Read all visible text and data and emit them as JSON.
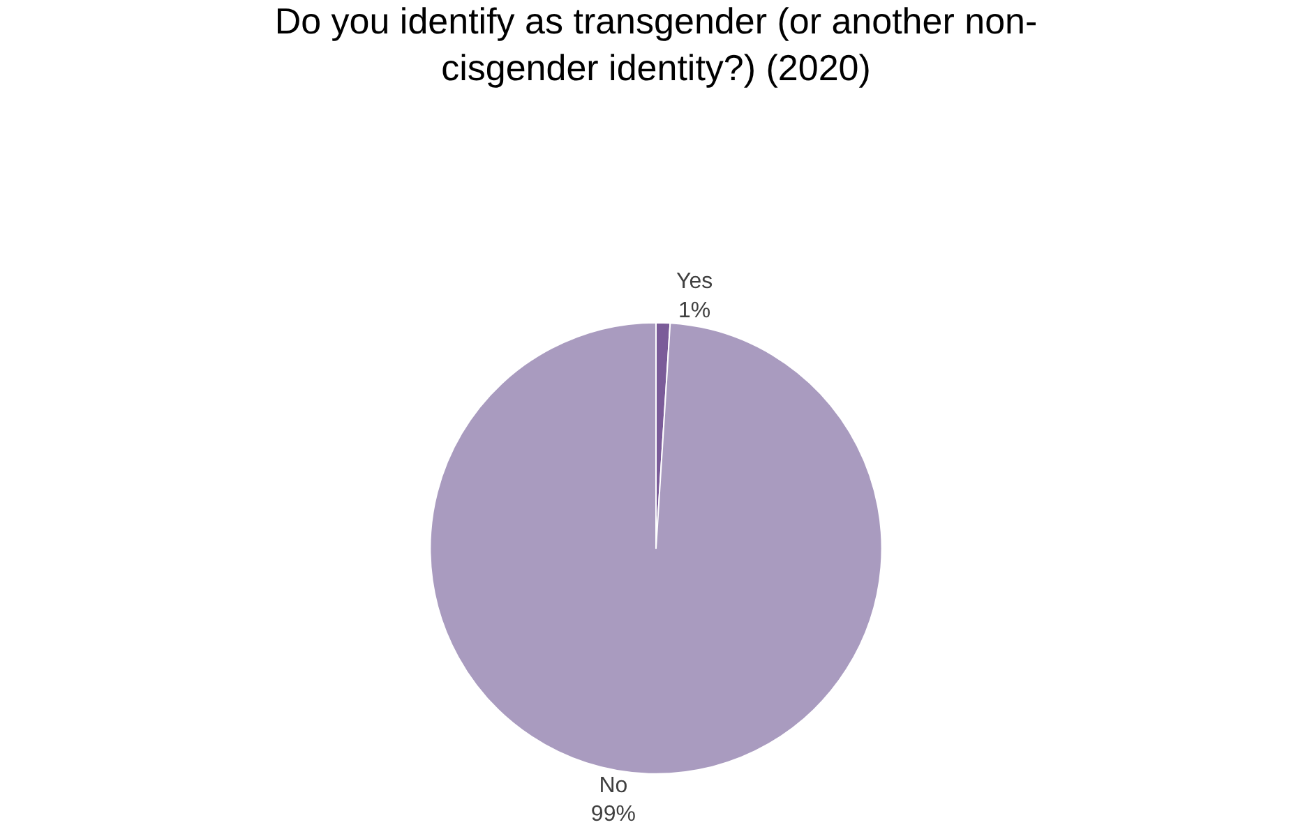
{
  "chart_data": {
    "type": "pie",
    "title": "Do you identify as transgender (or another non-\ncisgender identity?) (2020)",
    "categories": [
      "Yes",
      "No"
    ],
    "values": [
      1,
      99
    ],
    "value_labels": [
      "1%",
      "99%"
    ],
    "colors": [
      "#7b5c99",
      "#a99bbf"
    ],
    "legend": false
  }
}
